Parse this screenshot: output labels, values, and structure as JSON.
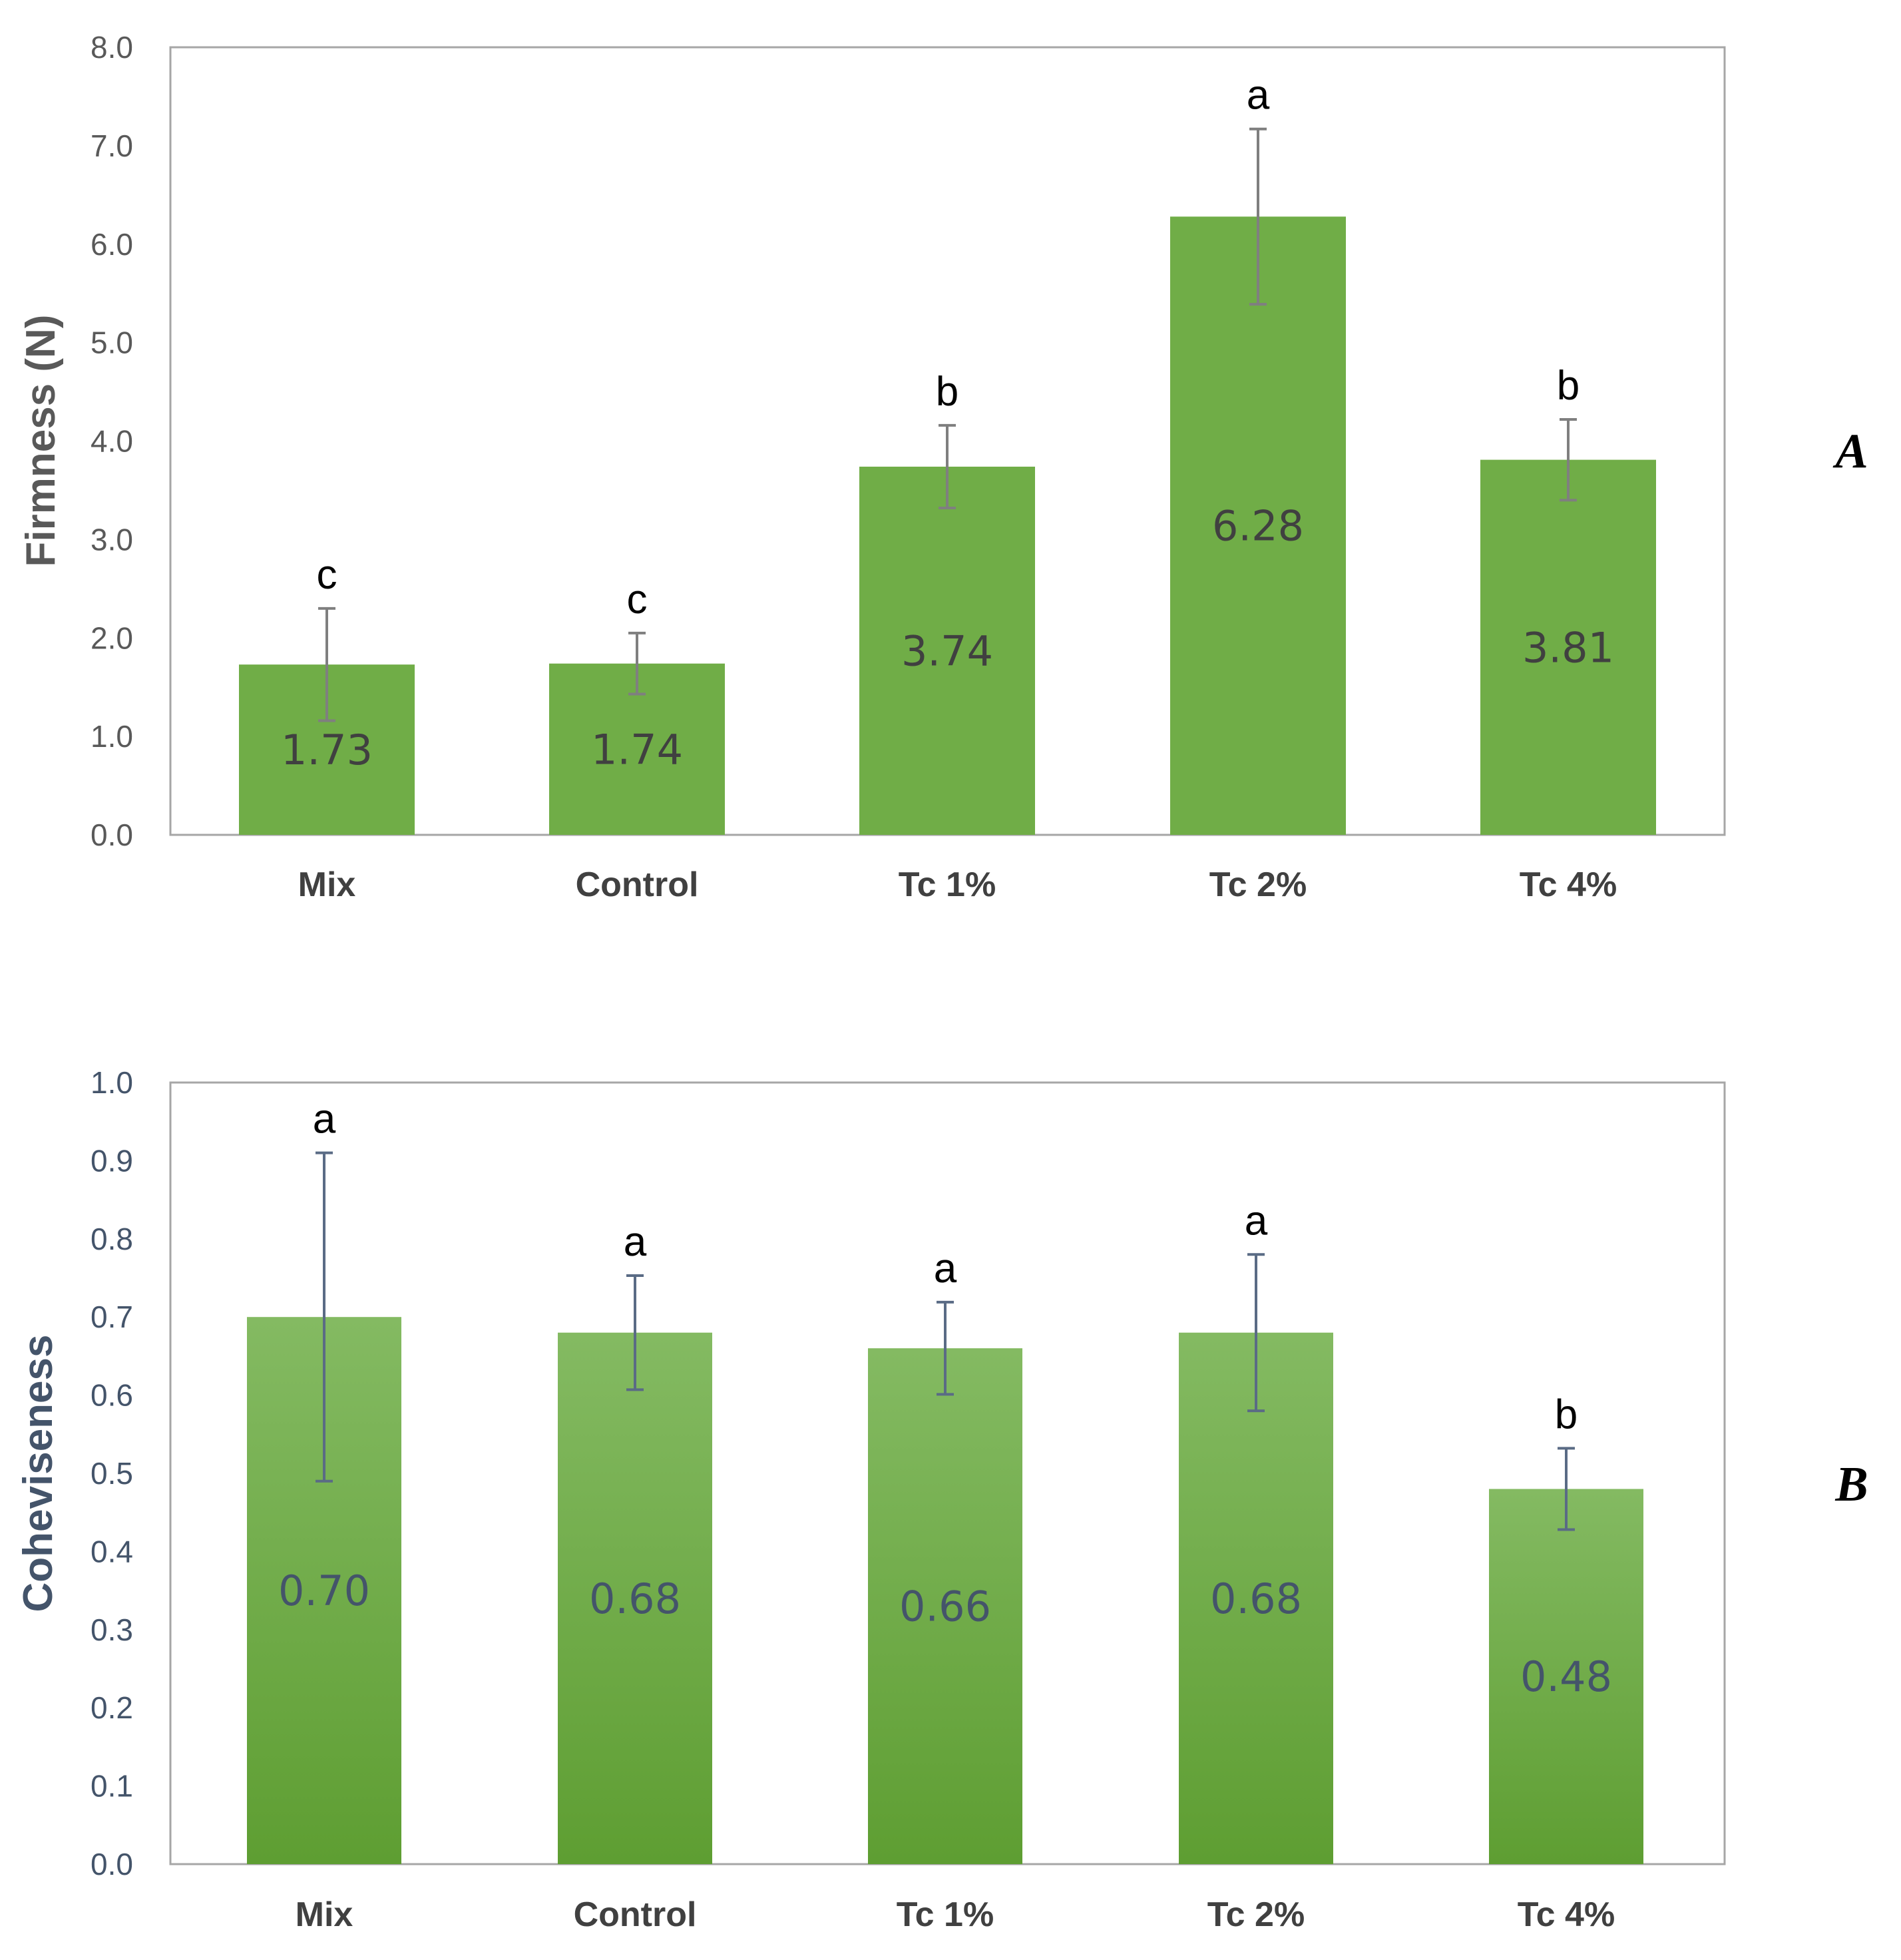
{
  "chart_data": [
    {
      "type": "bar",
      "panel_label": "A",
      "title": "",
      "xlabel": "",
      "ylabel": "Firmness (N)",
      "ylim": [
        0,
        8
      ],
      "yticks": [
        "0.0",
        "1.0",
        "2.0",
        "3.0",
        "4.0",
        "5.0",
        "6.0",
        "7.0",
        "8.0"
      ],
      "categories": [
        "Mix",
        "Control",
        "Tc 1%",
        "Tc 2%",
        "Tc 4%"
      ],
      "values": [
        1.73,
        1.74,
        3.74,
        6.28,
        3.81
      ],
      "value_labels": [
        "1.73",
        "1.74",
        "3.74",
        "6.28",
        "3.81"
      ],
      "errors": [
        0.57,
        0.31,
        0.42,
        0.89,
        0.41
      ],
      "significance": [
        "c",
        "c",
        "b",
        "a",
        "b"
      ],
      "colors": {
        "bar": "#70AD47",
        "error": "#7F7F7F",
        "frame": "#A6A6A6"
      }
    },
    {
      "type": "bar",
      "panel_label": "B",
      "title": "",
      "xlabel": "",
      "ylabel": "Coheviseness",
      "ylim": [
        0,
        1
      ],
      "yticks": [
        "0.0",
        "0.1",
        "0.2",
        "0.3",
        "0.4",
        "0.5",
        "0.6",
        "0.7",
        "0.8",
        "0.9",
        "1.0"
      ],
      "categories": [
        "Mix",
        "Control",
        "Tc 1%",
        "Tc 2%",
        "Tc 4%"
      ],
      "values": [
        0.7,
        0.68,
        0.66,
        0.68,
        0.48
      ],
      "value_labels": [
        "0.70",
        "0.68",
        "0.66",
        "0.68",
        "0.48"
      ],
      "errors": [
        0.21,
        0.073,
        0.059,
        0.1,
        0.052
      ],
      "significance": [
        "a",
        "a",
        "a",
        "a",
        "b"
      ],
      "colors": {
        "bar_top": "#84BA62",
        "bar_bottom": "#5E9E32",
        "error": "#5A6B85",
        "frame": "#A6A6A6"
      }
    }
  ]
}
